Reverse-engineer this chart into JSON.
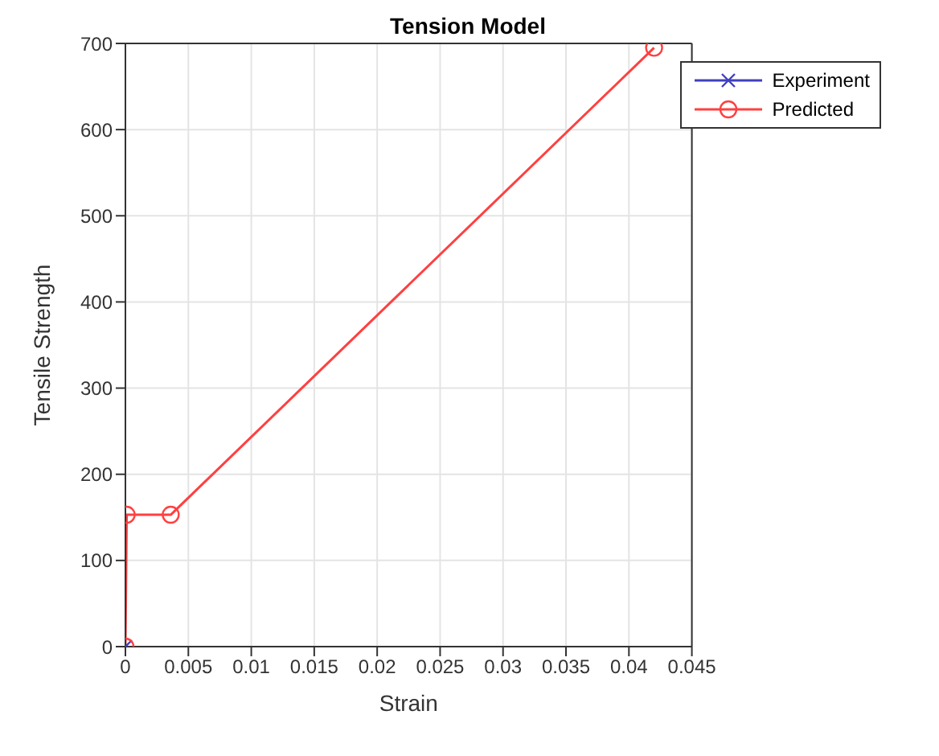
{
  "chart_data": {
    "type": "line",
    "title": "Tension Model",
    "xlabel": "Strain",
    "ylabel": "Tensile Strength",
    "series": [
      {
        "name": "Experiment",
        "color": "#4040c0",
        "marker": "cross",
        "x": [
          0
        ],
        "values": [
          0
        ]
      },
      {
        "name": "Predicted",
        "color": "#ff4040",
        "marker": "circle",
        "x": [
          0,
          0.0001,
          0.0036,
          0.042
        ],
        "values": [
          0,
          153,
          153,
          695
        ]
      }
    ],
    "xlim": [
      0,
      0.045
    ],
    "xticks": [
      0,
      0.005,
      0.01,
      0.015,
      0.02,
      0.025,
      0.03,
      0.035,
      0.04,
      0.045
    ],
    "ylim": [
      0,
      700
    ],
    "yticks": [
      0,
      100,
      200,
      300,
      400,
      500,
      600,
      700
    ],
    "grid": true,
    "legend": "top right",
    "line_style": "solid"
  }
}
